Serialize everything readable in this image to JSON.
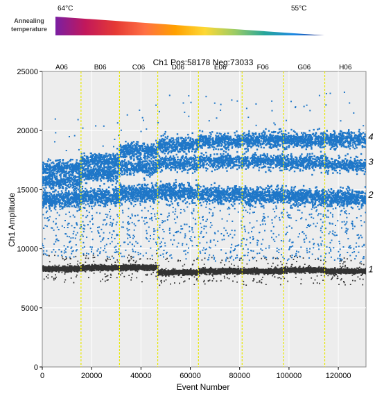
{
  "legend": {
    "label_line1": "Annealing",
    "label_line2": "temperature",
    "temp_high": "64°C",
    "temp_low": "55°C",
    "gradient_colors": [
      "#7a1fa2",
      "#c2185b",
      "#e53935",
      "#ff7043",
      "#ffa000",
      "#fdd835",
      "#9ccc65",
      "#26a69a",
      "#1e88e5",
      "#1a237e"
    ]
  },
  "chart_data": {
    "type": "scatter",
    "title": "Ch1 Pos:58178 Neg:73033",
    "xlabel": "Event Number",
    "ylabel": "Ch1 Amplitude",
    "xlim": [
      0,
      131211
    ],
    "ylim": [
      0,
      25000
    ],
    "xticks": [
      0,
      20000,
      40000,
      60000,
      80000,
      100000,
      120000
    ],
    "yticks": [
      0,
      5000,
      10000,
      15000,
      20000,
      25000
    ],
    "grid": true,
    "wells": [
      {
        "name": "A06",
        "start": 0,
        "end": 15700
      },
      {
        "name": "B06",
        "start": 15700,
        "end": 31300
      },
      {
        "name": "C06",
        "start": 31300,
        "end": 46800
      },
      {
        "name": "D06",
        "start": 46800,
        "end": 63300
      },
      {
        "name": "E06",
        "start": 63300,
        "end": 81000
      },
      {
        "name": "F06",
        "start": 81000,
        "end": 97800
      },
      {
        "name": "G06",
        "start": 97800,
        "end": 114500
      },
      {
        "name": "H06",
        "start": 114500,
        "end": 131211
      }
    ],
    "positive_color": "#1f77c8",
    "negative_color": "#333333",
    "well_divider_color": "#e8e800",
    "cluster_levels": {
      "negative_band": [
        8300,
        8400,
        8400,
        8000,
        8100,
        8100,
        8200,
        8100
      ],
      "cluster_2": [
        14200,
        14400,
        14700,
        14800,
        14600,
        14500,
        14400,
        14300
      ],
      "cluster_3": [
        15700,
        16300,
        16900,
        17200,
        17400,
        17400,
        17300,
        17100
      ],
      "cluster_4": [
        16800,
        17400,
        18300,
        18800,
        19100,
        19200,
        19200,
        19200
      ]
    },
    "annotations": [
      {
        "text": "4",
        "y": 19500
      },
      {
        "text": "3",
        "y": 17400
      },
      {
        "text": "2",
        "y": 14600
      },
      {
        "text": "1",
        "y": 8300
      }
    ]
  }
}
